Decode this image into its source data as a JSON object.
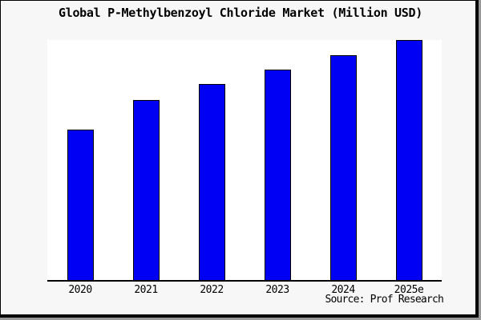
{
  "chart_data": {
    "type": "bar",
    "title": "Global P-Methylbenzoyl Chloride Market (Million USD)",
    "categories": [
      "2020",
      "2021",
      "2022",
      "2023",
      "2024",
      "2025e"
    ],
    "values_relative": [
      62.7,
      75.0,
      81.7,
      87.7,
      93.7,
      100.0
    ],
    "ylim": [
      0,
      100
    ],
    "xlabel": "",
    "ylabel": "",
    "grid": false,
    "legend": false,
    "y_axis_labels_shown": false,
    "bar_color": "#0000f2",
    "bar_edge_color": "#000000",
    "axis_line_color": "#000000",
    "plot_background": "#ffffff",
    "page_background": "#f7f7f7"
  },
  "source": {
    "label": "Source: Prof Research"
  }
}
